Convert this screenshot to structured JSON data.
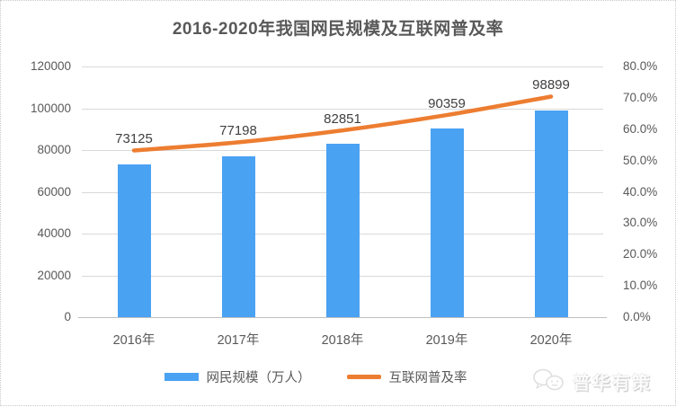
{
  "title": "2016-2020年我国网民规模及互联网普及率",
  "chart_data": {
    "type": "bar",
    "combo": "bar+line",
    "title": "2016-2020年我国网民规模及互联网普及率",
    "categories": [
      "2016年",
      "2017年",
      "2018年",
      "2019年",
      "2020年"
    ],
    "series": [
      {
        "name": "网民规模（万人）",
        "type": "bar",
        "axis": "left",
        "values": [
          73125,
          77198,
          82851,
          90359,
          98899
        ],
        "data_labels": [
          "73125",
          "77198",
          "82851",
          "90359",
          "98899"
        ],
        "color": "#4aa2f3"
      },
      {
        "name": "互联网普及率",
        "type": "line",
        "axis": "right",
        "values": [
          53.2,
          55.8,
          59.6,
          64.5,
          70.4
        ],
        "data_labels": [],
        "color": "#ed7d31",
        "smooth": true
      }
    ],
    "left_axis": {
      "min": 0,
      "max": 120000,
      "step": 20000,
      "ticks": [
        "120000",
        "100000",
        "80000",
        "60000",
        "40000",
        "20000",
        "0"
      ]
    },
    "right_axis": {
      "min": 0,
      "max": 80,
      "step": 10,
      "ticks": [
        "80.0%",
        "70.0%",
        "60.0%",
        "50.0%",
        "40.0%",
        "30.0%",
        "20.0%",
        "10.0%",
        "0.0%"
      ],
      "unit": "%"
    },
    "grid": true,
    "legend_position": "bottom",
    "xlabel": "",
    "ylabel": ""
  },
  "colors": {
    "bar": "#4aa2f3",
    "line": "#ed7d31",
    "title_text": "#595959",
    "axis_text": "#595959",
    "data_label_text": "#404040",
    "gridline": "#d9d9d9",
    "axis_line": "#bfbfbf",
    "background": "#ffffff"
  },
  "legend": {
    "items": [
      {
        "label": "网民规模（万人）",
        "swatch": "bar-rectangle"
      },
      {
        "label": "互联网普及率",
        "swatch": "line-segment"
      }
    ]
  },
  "watermark": {
    "text": "普华有策",
    "icon": "speech-bubbles-icon"
  }
}
